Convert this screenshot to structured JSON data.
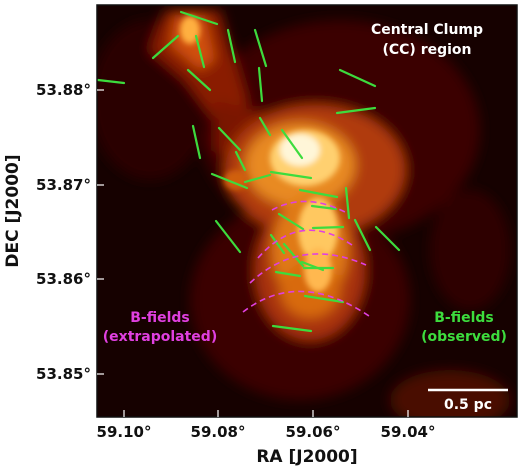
{
  "plot": {
    "region_title_line1": "Central Clump",
    "region_title_line2": "(CC) region",
    "label_extrapolated_line1": "B-fields",
    "label_extrapolated_line2": "(extrapolated)",
    "label_observed_line1": "B-fields",
    "label_observed_line2": "(observed)",
    "scalebar_label": "0.5 pc",
    "xlabel": "RA [J2000]",
    "ylabel": "DEC [J2000]",
    "x_ticks": [
      "59.10°",
      "59.08°",
      "59.06°",
      "59.04°"
    ],
    "y_ticks": [
      "53.88°",
      "53.87°",
      "53.86°",
      "53.85°"
    ]
  },
  "colors": {
    "observed_vectors": "#3ddc3d",
    "extrapolated_lines": "#e040e0",
    "annotation_white": "#ffffff",
    "colormap": "afmhot"
  }
}
